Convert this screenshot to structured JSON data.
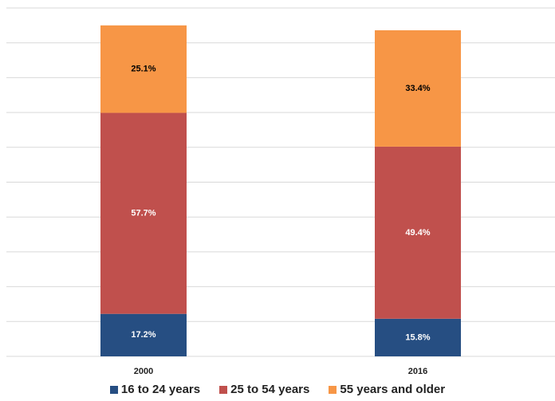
{
  "chart_data": {
    "type": "stacked_bar",
    "categories": [
      "2000",
      "2016"
    ],
    "series": [
      {
        "name": "16 to 24 years",
        "color": "#264e82",
        "values": [
          17.2,
          15.8
        ],
        "value_labels": [
          "17.2%",
          "15.8%"
        ],
        "label_color": "#ffffff"
      },
      {
        "name": "25 to 54 years",
        "color": "#c0504d",
        "values": [
          57.7,
          49.4
        ],
        "value_labels": [
          "57.7%",
          "49.4%"
        ],
        "label_color": "#ffffff"
      },
      {
        "name": "55 years and older",
        "color": "#f79646",
        "values": [
          25.1,
          33.4
        ],
        "value_labels": [
          "25.1%",
          "33.4%"
        ],
        "label_color": "#000000"
      }
    ],
    "ylim": [
      5,
      105
    ],
    "yticks": [
      5,
      15,
      25,
      35,
      45,
      55,
      65,
      75,
      85,
      95,
      105
    ],
    "grid": true
  }
}
